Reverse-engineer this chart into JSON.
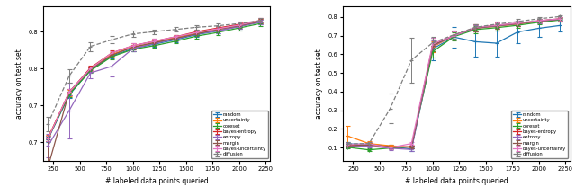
{
  "x": [
    200,
    400,
    600,
    800,
    1000,
    1200,
    1400,
    1600,
    1800,
    2000,
    2200
  ],
  "left": {
    "ylim": [
      0.625,
      0.835
    ],
    "yticks": [
      0.65,
      0.7,
      0.75,
      0.8
    ],
    "ylabel": "accuracy on test set",
    "xlabel": "# labeled data points queried",
    "series": {
      "random": {
        "color": "#1f77b4",
        "y": [
          0.654,
          0.714,
          0.748,
          0.767,
          0.777,
          0.783,
          0.789,
          0.796,
          0.801,
          0.807,
          0.813
        ],
        "yerr": [
          0.004,
          0.004,
          0.003,
          0.003,
          0.003,
          0.003,
          0.003,
          0.003,
          0.003,
          0.003,
          0.003
        ]
      },
      "uncertainty": {
        "color": "#ff7f0e",
        "y": [
          0.656,
          0.717,
          0.75,
          0.769,
          0.779,
          0.785,
          0.792,
          0.798,
          0.803,
          0.809,
          0.814
        ],
        "yerr": [
          0.004,
          0.004,
          0.003,
          0.003,
          0.003,
          0.003,
          0.003,
          0.003,
          0.003,
          0.003,
          0.003
        ]
      },
      "coreset": {
        "color": "#2ca02c",
        "y": [
          0.655,
          0.715,
          0.747,
          0.766,
          0.776,
          0.781,
          0.787,
          0.794,
          0.799,
          0.805,
          0.811
        ],
        "yerr": [
          0.004,
          0.004,
          0.003,
          0.003,
          0.003,
          0.003,
          0.003,
          0.003,
          0.003,
          0.003,
          0.003
        ]
      },
      "bayes-entropy": {
        "color": "#d62728",
        "y": [
          0.655,
          0.718,
          0.751,
          0.771,
          0.781,
          0.787,
          0.793,
          0.8,
          0.805,
          0.81,
          0.815
        ],
        "yerr": [
          0.004,
          0.004,
          0.003,
          0.004,
          0.003,
          0.003,
          0.003,
          0.003,
          0.003,
          0.003,
          0.003
        ]
      },
      "entropy": {
        "color": "#9467bd",
        "y": [
          0.645,
          0.693,
          0.744,
          0.753,
          0.777,
          0.784,
          0.79,
          0.797,
          0.801,
          0.807,
          0.813
        ],
        "yerr": [
          0.016,
          0.038,
          0.007,
          0.014,
          0.003,
          0.003,
          0.003,
          0.003,
          0.003,
          0.003,
          0.003
        ]
      },
      "margin": {
        "color": "#8c564b",
        "y": [
          0.616,
          0.718,
          0.749,
          0.768,
          0.779,
          0.785,
          0.791,
          0.797,
          0.803,
          0.808,
          0.814
        ],
        "yerr": [
          0.038,
          0.004,
          0.003,
          0.003,
          0.003,
          0.003,
          0.003,
          0.003,
          0.003,
          0.003,
          0.003
        ]
      },
      "bayes-uncertainty": {
        "color": "#e377c2",
        "y": [
          0.655,
          0.718,
          0.75,
          0.771,
          0.781,
          0.787,
          0.793,
          0.799,
          0.804,
          0.809,
          0.815
        ],
        "yerr": [
          0.004,
          0.004,
          0.003,
          0.003,
          0.003,
          0.003,
          0.003,
          0.003,
          0.003,
          0.003,
          0.003
        ]
      },
      "diffusion": {
        "color": "#7f7f7f",
        "linestyle": "--",
        "y": [
          0.675,
          0.74,
          0.78,
          0.789,
          0.797,
          0.8,
          0.803,
          0.806,
          0.808,
          0.811,
          0.815
        ],
        "yerr": [
          0.01,
          0.009,
          0.006,
          0.005,
          0.004,
          0.003,
          0.003,
          0.003,
          0.003,
          0.003,
          0.003
        ]
      }
    }
  },
  "right": {
    "ylim": [
      0.03,
      0.86
    ],
    "yticks": [
      0.1,
      0.2,
      0.3,
      0.4,
      0.5,
      0.6,
      0.7,
      0.8
    ],
    "ylabel": "accuracy on test set",
    "xlabel": "# labeled data points queried",
    "series": {
      "random": {
        "color": "#1f77b4",
        "y": [
          0.12,
          0.118,
          0.108,
          0.092,
          0.63,
          0.693,
          0.668,
          0.66,
          0.72,
          0.74,
          0.755
        ],
        "yerr": [
          0.008,
          0.008,
          0.008,
          0.008,
          0.06,
          0.055,
          0.08,
          0.07,
          0.06,
          0.045,
          0.03
        ]
      },
      "uncertainty": {
        "color": "#ff7f0e",
        "y": [
          0.162,
          0.122,
          0.11,
          0.102,
          0.64,
          0.7,
          0.74,
          0.75,
          0.762,
          0.775,
          0.786
        ],
        "yerr": [
          0.055,
          0.012,
          0.008,
          0.008,
          0.03,
          0.022,
          0.018,
          0.015,
          0.012,
          0.01,
          0.008
        ]
      },
      "coreset": {
        "color": "#2ca02c",
        "y": [
          0.102,
          0.088,
          0.098,
          0.105,
          0.615,
          0.695,
          0.733,
          0.743,
          0.756,
          0.772,
          0.784
        ],
        "yerr": [
          0.008,
          0.008,
          0.008,
          0.008,
          0.03,
          0.022,
          0.018,
          0.015,
          0.012,
          0.01,
          0.008
        ]
      },
      "bayes-entropy": {
        "color": "#d62728",
        "y": [
          0.11,
          0.115,
          0.103,
          0.105,
          0.648,
          0.703,
          0.742,
          0.756,
          0.766,
          0.78,
          0.791
        ],
        "yerr": [
          0.008,
          0.008,
          0.008,
          0.008,
          0.03,
          0.022,
          0.018,
          0.015,
          0.012,
          0.01,
          0.008
        ]
      },
      "entropy": {
        "color": "#9467bd",
        "y": [
          0.107,
          0.108,
          0.097,
          0.09,
          0.645,
          0.7,
          0.74,
          0.752,
          0.764,
          0.778,
          0.788
        ],
        "yerr": [
          0.008,
          0.008,
          0.008,
          0.008,
          0.03,
          0.022,
          0.018,
          0.015,
          0.012,
          0.01,
          0.008
        ]
      },
      "margin": {
        "color": "#8c564b",
        "y": [
          0.11,
          0.115,
          0.103,
          0.103,
          0.648,
          0.702,
          0.741,
          0.754,
          0.765,
          0.779,
          0.79
        ],
        "yerr": [
          0.008,
          0.008,
          0.008,
          0.008,
          0.03,
          0.022,
          0.018,
          0.015,
          0.012,
          0.01,
          0.008
        ]
      },
      "bayes-uncertainty": {
        "color": "#e377c2",
        "y": [
          0.117,
          0.12,
          0.1,
          0.122,
          0.658,
          0.7,
          0.745,
          0.756,
          0.768,
          0.781,
          0.791
        ],
        "yerr": [
          0.008,
          0.008,
          0.008,
          0.008,
          0.03,
          0.022,
          0.018,
          0.015,
          0.012,
          0.01,
          0.008
        ]
      },
      "diffusion": {
        "color": "#7f7f7f",
        "linestyle": "--",
        "y": [
          0.12,
          0.122,
          0.31,
          0.57,
          0.663,
          0.705,
          0.745,
          0.762,
          0.776,
          0.791,
          0.803
        ],
        "yerr": [
          0.008,
          0.008,
          0.08,
          0.12,
          0.03,
          0.022,
          0.018,
          0.015,
          0.012,
          0.01,
          0.008
        ]
      }
    }
  },
  "legend_order": [
    "random",
    "uncertainty",
    "coreset",
    "bayes-entropy",
    "entropy",
    "margin",
    "bayes-uncertainty",
    "diffusion"
  ],
  "xticks": [
    250,
    500,
    750,
    1000,
    1250,
    1500,
    1750,
    2000,
    2250
  ],
  "xlim": [
    155,
    2295
  ]
}
